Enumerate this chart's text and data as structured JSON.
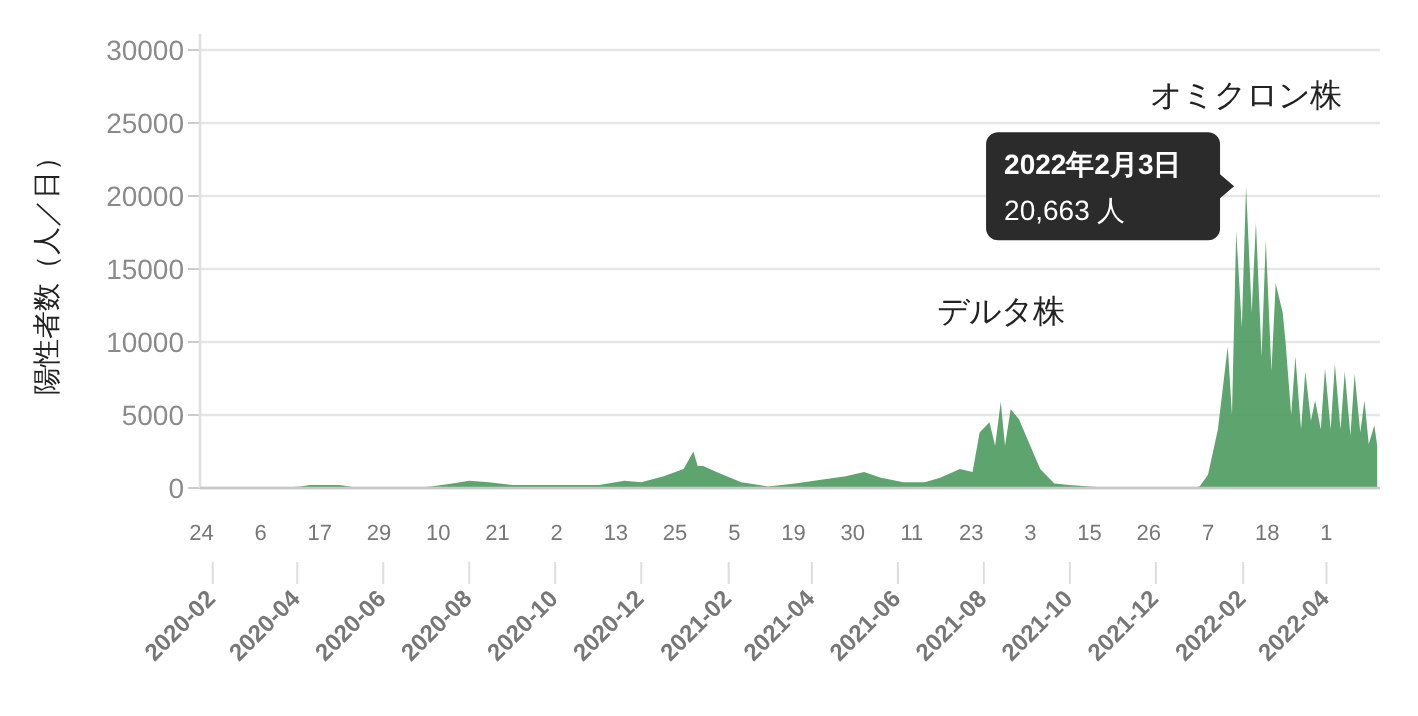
{
  "chart_data": {
    "type": "area",
    "ylabel": "陽性者数（人／日）",
    "xlim": [
      "2020-01-23",
      "2022-05-09"
    ],
    "ylim": [
      0,
      30000
    ],
    "yticks": [
      0,
      5000,
      10000,
      15000,
      20000,
      25000,
      30000
    ],
    "grid": "y",
    "xticks": [
      "2020-02",
      "2020-04",
      "2020-06",
      "2020-08",
      "2020-10",
      "2020-12",
      "2021-02",
      "2021-04",
      "2021-06",
      "2021-08",
      "2021-10",
      "2021-12",
      "2022-02",
      "2022-04"
    ],
    "x2lim": [
      "2020-01-23",
      "2022-05-09"
    ],
    "x2ticks": [
      {
        "value": "2020-01-24",
        "label": "24"
      },
      {
        "value": "2020-03-06",
        "label": "6"
      },
      {
        "value": "2020-04-17",
        "label": "17"
      },
      {
        "value": "2020-05-29",
        "label": "29"
      },
      {
        "value": "2020-07-10",
        "label": "10"
      },
      {
        "value": "2020-08-21",
        "label": "21"
      },
      {
        "value": "2020-10-02",
        "label": "2"
      },
      {
        "value": "2020-11-13",
        "label": "13"
      },
      {
        "value": "2020-12-25",
        "label": "25"
      },
      {
        "value": "2021-02-05",
        "label": "5"
      },
      {
        "value": "2021-03-19",
        "label": "19"
      },
      {
        "value": "2021-04-30",
        "label": "30"
      },
      {
        "value": "2021-06-11",
        "label": "11"
      },
      {
        "value": "2021-07-23",
        "label": "23"
      },
      {
        "value": "2021-09-03",
        "label": "3"
      },
      {
        "value": "2021-10-15",
        "label": "15"
      },
      {
        "value": "2021-11-26",
        "label": "26"
      },
      {
        "value": "2022-01-07",
        "label": "7"
      },
      {
        "value": "2022-02-18",
        "label": "18"
      },
      {
        "value": "2022-04-01",
        "label": "1"
      }
    ],
    "annotations": [
      {
        "text": "2022年2月3日\n20,663 人",
        "x": "2022-02-03",
        "y": 20663
      },
      {
        "text": "デルタ株",
        "x": "2021-08-13",
        "y": 5900
      },
      {
        "text": "オミクロン株",
        "x": "2022-02-03",
        "y": 20663
      }
    ],
    "series": [
      {
        "color": "#4c9a5e",
        "x": [
          "2020-01-24",
          "2020-03-20",
          "2020-04-03",
          "2020-04-10",
          "2020-04-17",
          "2020-05-01",
          "2020-05-15",
          "2020-06-01",
          "2020-06-20",
          "2020-07-05",
          "2020-07-20",
          "2020-08-01",
          "2020-08-15",
          "2020-09-01",
          "2020-09-20",
          "2020-10-10",
          "2020-11-01",
          "2020-11-19",
          "2020-12-01",
          "2020-12-17",
          "2020-12-31",
          "2021-01-07",
          "2021-01-10",
          "2021-01-14",
          "2021-01-21",
          "2021-01-28",
          "2021-02-10",
          "2021-03-01",
          "2021-03-20",
          "2021-04-10",
          "2021-04-25",
          "2021-05-08",
          "2021-05-20",
          "2021-06-05",
          "2021-06-20",
          "2021-07-01",
          "2021-07-15",
          "2021-07-24",
          "2021-07-29",
          "2021-08-05",
          "2021-08-09",
          "2021-08-13",
          "2021-08-16",
          "2021-08-20",
          "2021-08-26",
          "2021-09-02",
          "2021-09-10",
          "2021-09-20",
          "2021-10-01",
          "2021-10-15",
          "2021-11-01",
          "2021-12-01",
          "2021-12-25",
          "2022-01-01",
          "2022-01-07",
          "2022-01-14",
          "2022-01-21",
          "2022-01-24",
          "2022-01-27",
          "2022-01-31",
          "2022-02-03",
          "2022-02-07",
          "2022-02-10",
          "2022-02-14",
          "2022-02-17",
          "2022-02-21",
          "2022-02-24",
          "2022-03-01",
          "2022-03-03",
          "2022-03-07",
          "2022-03-10",
          "2022-03-14",
          "2022-03-17",
          "2022-03-21",
          "2022-03-24",
          "2022-03-28",
          "2022-03-31",
          "2022-04-04",
          "2022-04-07",
          "2022-04-11",
          "2022-04-14",
          "2022-04-18",
          "2022-04-21",
          "2022-04-25",
          "2022-04-28",
          "2022-05-01",
          "2022-05-05",
          "2022-05-07"
        ],
        "values": [
          0,
          0,
          100,
          200,
          200,
          200,
          0,
          0,
          0,
          100,
          300,
          500,
          400,
          200,
          200,
          200,
          200,
          500,
          400,
          800,
          1300,
          2500,
          1500,
          1500,
          1200,
          900,
          400,
          100,
          300,
          600,
          800,
          1100,
          700,
          400,
          400,
          700,
          1300,
          1100,
          3800,
          4500,
          2900,
          5900,
          2900,
          5400,
          4700,
          3100,
          1300,
          300,
          200,
          100,
          0,
          0,
          0,
          100,
          900,
          4000,
          9700,
          5000,
          17600,
          11000,
          20663,
          12000,
          18200,
          9000,
          17000,
          8000,
          14000,
          12000,
          10000,
          5000,
          9000,
          4000,
          8000,
          4600,
          6000,
          4000,
          8200,
          4000,
          8500,
          4000,
          8000,
          3600,
          7800,
          3800,
          6000,
          3000,
          4300,
          2900
        ]
      }
    ]
  }
}
